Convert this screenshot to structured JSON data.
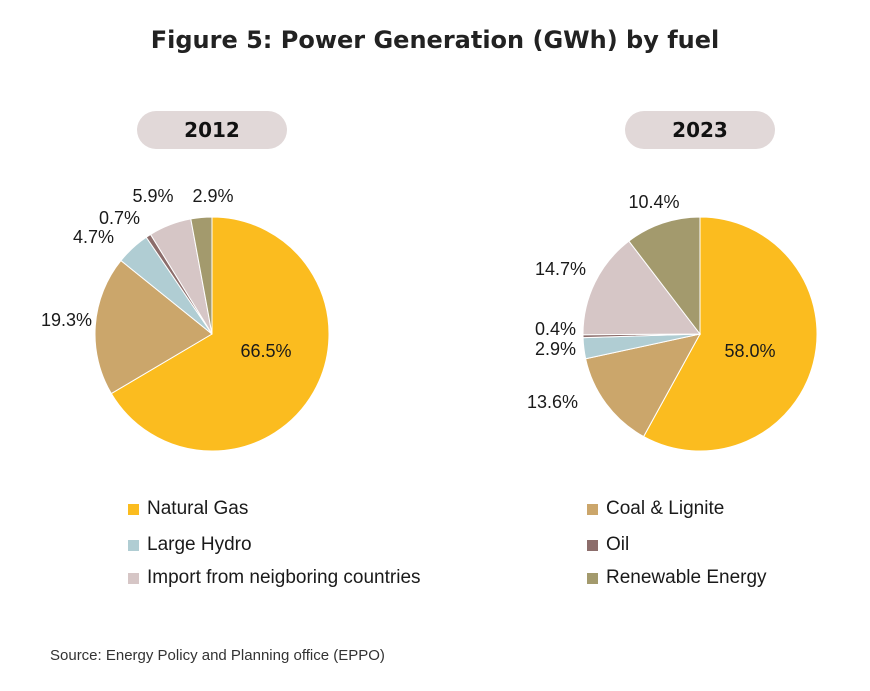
{
  "title": "Figure 5: Power Generation (GWh) by fuel",
  "source": "Source: Energy Policy and Planning office (EPPO)",
  "chart_data": [
    {
      "type": "pie",
      "title": "2012",
      "categories": [
        "Natural Gas",
        "Coal & Lignite",
        "Large Hydro",
        "Oil",
        "Import from neigboring countries",
        "Renewable Energy"
      ],
      "values": [
        66.5,
        19.3,
        4.7,
        0.7,
        5.9,
        2.9
      ],
      "labels": [
        "66.5%",
        "19.3%",
        "4.7%",
        "0.7%",
        "5.9%",
        "2.9%"
      ]
    },
    {
      "type": "pie",
      "title": "2023",
      "categories": [
        "Natural Gas",
        "Coal & Lignite",
        "Large Hydro",
        "Oil",
        "Import from neigboring countries",
        "Renewable Energy"
      ],
      "values": [
        58.0,
        13.6,
        2.9,
        0.4,
        14.7,
        10.4
      ],
      "labels": [
        "58.0%",
        "13.6%",
        "2.9%",
        "0.4%",
        "14.7%",
        "10.4%"
      ]
    }
  ],
  "colors": [
    "#fbbc1f",
    "#cba66b",
    "#b0cdd3",
    "#8c6d6b",
    "#d6c6c6",
    "#a39a6d"
  ],
  "legend": [
    {
      "label": "Natural Gas",
      "color": "#fbbc1f"
    },
    {
      "label": "Coal & Lignite",
      "color": "#cba66b"
    },
    {
      "label": "Large Hydro",
      "color": "#b0cdd3"
    },
    {
      "label": "Oil",
      "color": "#8c6d6b"
    },
    {
      "label": "Import from neigboring countries",
      "color": "#d6c6c6"
    },
    {
      "label": "Renewable Energy",
      "color": "#a39a6d"
    }
  ]
}
